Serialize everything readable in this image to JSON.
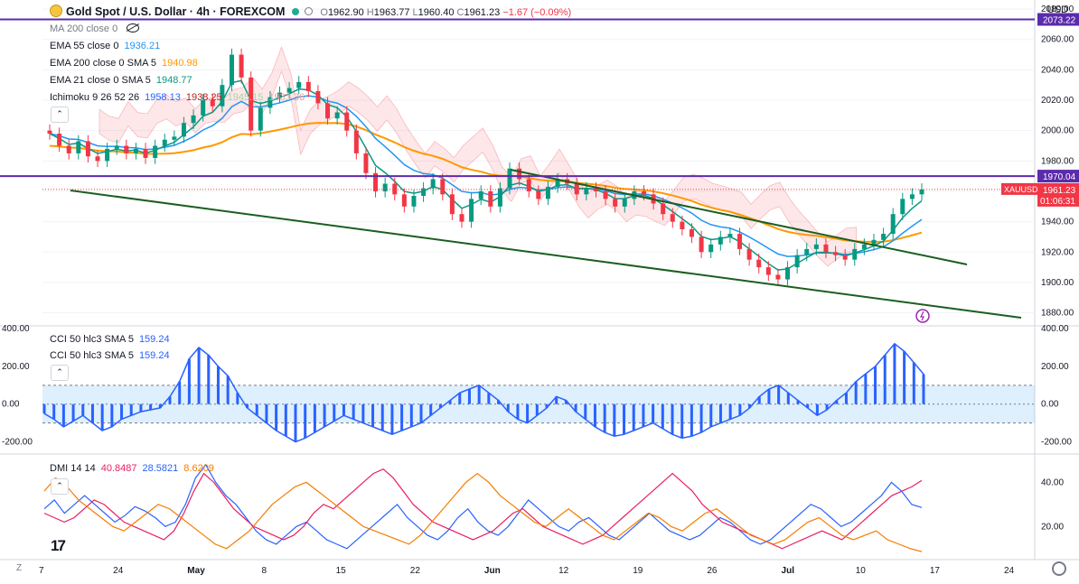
{
  "header": {
    "symbol": "Gold Spot / U.S. Dollar · 4h · FOREXCOM",
    "open_label": "O",
    "open": "1962.90",
    "high_label": "H",
    "high": "1963.77",
    "low_label": "L",
    "low": "1960.40",
    "close_label": "C",
    "close": "1961.23",
    "change": "−1.67 (−0.09%)",
    "currency": "USD"
  },
  "indicators": {
    "ma": "MA 200 close 0",
    "ema55": {
      "label": "EMA 55 close 0",
      "value": "1936.21"
    },
    "ema200": {
      "label": "EMA 200 close 0 SMA 5",
      "value": "1940.98"
    },
    "ema21": {
      "label": "EMA 21 close 0 SMA 5",
      "value": "1948.77"
    },
    "ichimoku": {
      "label": "Ichimoku 9 26 52 26",
      "v1": "1958.13",
      "v2": "1938.25",
      "v3": "1945.15",
      "v4": "1933.36"
    },
    "cci_a": {
      "label": "CCI 50 hlc3 SMA 5",
      "value": "159.24"
    },
    "cci_b": {
      "label": "CCI 50 hlc3 SMA 5",
      "value": "159.24"
    },
    "dmi": {
      "label": "DMI 14 14",
      "v1": "40.8487",
      "v2": "28.5821",
      "v3": "8.6209"
    }
  },
  "price_tags": {
    "level_top": "2073.22",
    "level_mid": "1970.04",
    "ticker": "XAUUSD",
    "last": "1961.23",
    "countdown": "01:06:31"
  },
  "controls": {
    "up_arrow": "⌃",
    "z": "Z",
    "logo": "17"
  },
  "colors": {
    "accent": "#2962ff",
    "ema55": "#2196f3",
    "ema200": "#ff9800",
    "ema21": "#089981",
    "up": "#089981",
    "down": "#f23645",
    "level": "#5b2bab",
    "trend": "#1b5e20",
    "dmi_plus": "#2962ff",
    "dmi_minus": "#e91e63",
    "adx": "#f57c00"
  },
  "chart_data": [
    {
      "type": "line",
      "title": "Gold Spot / U.S. Dollar · 4h · FOREXCOM",
      "x_ticks": [
        "7",
        "24",
        "May",
        "8",
        "15",
        "22",
        "Jun",
        "12",
        "19",
        "26",
        "Jul",
        "10",
        "17",
        "24"
      ],
      "y_ticks": [
        "2080.00",
        "2060.00",
        "2040.00",
        "2020.00",
        "2000.00",
        "1980.00",
        "1960.00",
        "1940.00",
        "1920.00",
        "1900.00",
        "1880.00"
      ],
      "ylim": [
        1872,
        2086
      ],
      "x_index_range": [
        0,
        95
      ],
      "close_series": [
        1998,
        1990,
        1985,
        1993,
        1983,
        1980,
        1988,
        1990,
        1985,
        1988,
        1982,
        1990,
        1994,
        1996,
        2005,
        2010,
        2020,
        2016,
        2030,
        2050,
        2035,
        2000,
        2015,
        2022,
        2025,
        2028,
        2032,
        2026,
        2018,
        2008,
        2012,
        2000,
        1985,
        1972,
        1960,
        1965,
        1958,
        1950,
        1957,
        1962,
        1968,
        1958,
        1945,
        1940,
        1955,
        1960,
        1950,
        1962,
        1975,
        1968,
        1960,
        1955,
        1963,
        1968,
        1965,
        1958,
        1962,
        1960,
        1955,
        1950,
        1955,
        1960,
        1958,
        1952,
        1945,
        1940,
        1935,
        1930,
        1920,
        1925,
        1930,
        1932,
        1922,
        1915,
        1910,
        1905,
        1902,
        1910,
        1918,
        1922,
        1925,
        1920,
        1918,
        1915,
        1922,
        1925,
        1928,
        1932,
        1945,
        1955,
        1958,
        1961.23
      ],
      "series": [
        {
          "name": "EMA 55 close 0",
          "value": 1936.21
        },
        {
          "name": "EMA 200 close 0 SMA 5",
          "value": 1940.98
        },
        {
          "name": "EMA 21 close 0 SMA 5",
          "value": 1948.77
        }
      ],
      "horizontal_levels": [
        2073.22,
        1970.04
      ],
      "last_price": 1961.23
    },
    {
      "type": "area",
      "title": "CCI 50 hlc3 SMA 5",
      "y_ticks": [
        "400.00",
        "200.00",
        "0.00",
        "-200.00"
      ],
      "ylim": [
        -250,
        410
      ],
      "band": [
        -100,
        100
      ],
      "values": [
        -50,
        -80,
        -120,
        -90,
        -60,
        -100,
        -140,
        -120,
        -80,
        -60,
        -40,
        -30,
        -20,
        40,
        120,
        240,
        300,
        260,
        200,
        150,
        60,
        -20,
        -60,
        -100,
        -140,
        -170,
        -200,
        -180,
        -150,
        -120,
        -90,
        -60,
        -80,
        -100,
        -120,
        -140,
        -160,
        -140,
        -120,
        -100,
        -60,
        -20,
        20,
        60,
        80,
        100,
        60,
        20,
        -40,
        -80,
        -100,
        -60,
        -20,
        40,
        20,
        -40,
        -80,
        -120,
        -150,
        -170,
        -160,
        -140,
        -120,
        -100,
        -130,
        -160,
        -180,
        -170,
        -150,
        -120,
        -100,
        -80,
        -60,
        -20,
        40,
        80,
        100,
        60,
        20,
        -20,
        -60,
        -30,
        20,
        60,
        120,
        160,
        200,
        260,
        320,
        280,
        220,
        159.24
      ]
    },
    {
      "type": "line",
      "title": "DMI 14 14",
      "y_ticks": [
        "40.00",
        "20.00"
      ],
      "ylim": [
        5,
        52
      ],
      "series": [
        {
          "values": [
            28,
            32,
            26,
            30,
            34,
            30,
            26,
            22,
            25,
            29,
            27,
            24,
            20,
            22,
            30,
            42,
            48,
            40,
            34,
            30,
            24,
            18,
            14,
            12,
            16,
            20,
            22,
            18,
            14,
            12,
            10,
            14,
            18,
            22,
            26,
            30,
            24,
            20,
            16,
            14,
            18,
            24,
            28,
            22,
            18,
            16,
            20,
            26,
            32,
            28,
            24,
            20,
            18,
            22,
            24,
            20,
            16,
            14,
            18,
            22,
            26,
            22,
            18,
            16,
            14,
            16,
            20,
            24,
            22,
            18,
            14,
            12,
            14,
            18,
            22,
            26,
            30,
            28,
            24,
            20,
            22,
            26,
            30,
            34,
            40,
            36,
            30,
            28.5821
          ]
        },
        {
          "values": [
            26,
            24,
            22,
            24,
            28,
            32,
            30,
            26,
            22,
            20,
            18,
            16,
            14,
            18,
            26,
            36,
            44,
            40,
            34,
            28,
            24,
            20,
            18,
            16,
            14,
            16,
            20,
            26,
            30,
            28,
            32,
            36,
            40,
            44,
            46,
            42,
            36,
            30,
            26,
            22,
            20,
            18,
            16,
            14,
            16,
            18,
            22,
            26,
            28,
            24,
            20,
            18,
            16,
            14,
            12,
            14,
            16,
            20,
            24,
            28,
            32,
            36,
            40,
            44,
            40,
            36,
            30,
            26,
            22,
            20,
            18,
            16,
            14,
            12,
            10,
            12,
            14,
            16,
            18,
            16,
            14,
            18,
            22,
            26,
            30,
            34,
            36,
            38,
            40.8487
          ]
        },
        {
          "values": [
            36,
            42,
            38,
            32,
            28,
            24,
            20,
            18,
            22,
            26,
            30,
            28,
            24,
            20,
            16,
            12,
            10,
            14,
            18,
            24,
            30,
            34,
            38,
            40,
            36,
            32,
            28,
            24,
            20,
            18,
            16,
            14,
            12,
            16,
            22,
            28,
            34,
            40,
            44,
            40,
            34,
            30,
            26,
            22,
            20,
            24,
            28,
            24,
            20,
            16,
            14,
            18,
            22,
            26,
            24,
            20,
            18,
            22,
            26,
            28,
            24,
            20,
            16,
            14,
            12,
            14,
            18,
            22,
            24,
            20,
            16,
            14,
            16,
            18,
            14,
            12,
            10,
            8.6209
          ]
        }
      ]
    }
  ]
}
